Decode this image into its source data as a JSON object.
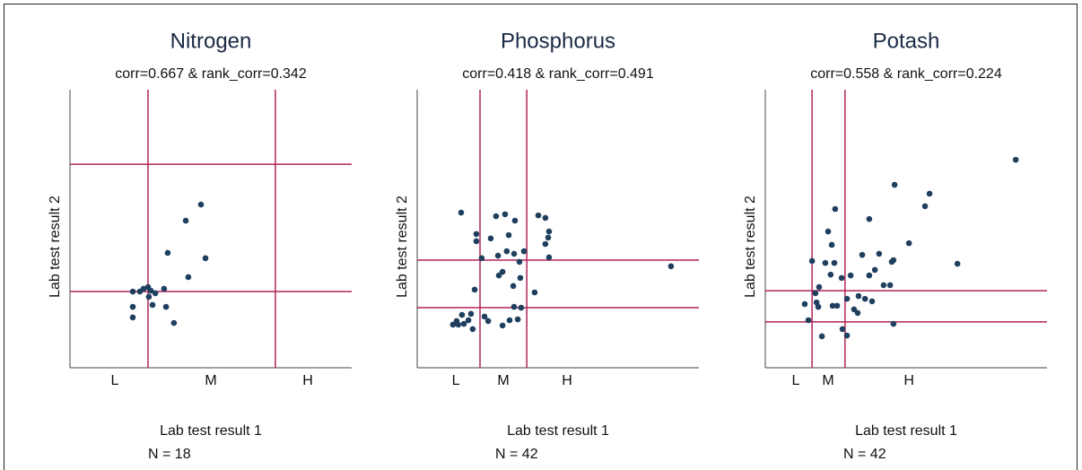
{
  "chart_data": [
    {
      "type": "scatter",
      "title": "Nitrogen",
      "subtitle": "corr=0.667 & rank_corr=0.342",
      "x_label": "Lab test result 1",
      "y_label": "Lab test result 2",
      "note": "N = 18",
      "xlim": [
        0,
        100
      ],
      "ylim": [
        0,
        100
      ],
      "xticks": [
        {
          "value": 15.9,
          "label": "L"
        },
        {
          "value": 50,
          "label": "M"
        },
        {
          "value": 84.4,
          "label": "H"
        }
      ],
      "vlines": [
        27.7,
        72.9
      ],
      "hlines": [
        73.2,
        27.4
      ],
      "color": "#1f3f5f",
      "line_color": "#b0245a",
      "x": [
        46.5,
        41.1,
        34.7,
        48.1,
        42.0,
        22.3,
        24.8,
        27.7,
        30.3,
        33.4,
        28.0,
        22.3,
        29.3,
        34.1,
        22.3,
        36.9,
        26.1,
        28.7
      ],
      "y": [
        58.7,
        52.9,
        41.3,
        39.4,
        32.6,
        27.4,
        27.4,
        29.0,
        26.8,
        28.4,
        25.5,
        21.9,
        22.6,
        21.9,
        18.1,
        16.1,
        28.4,
        27.7
      ]
    },
    {
      "type": "scatter",
      "title": "Phosphorus",
      "subtitle": "corr=0.418 & rank_corr=0.491",
      "x_label": "Lab test result 1",
      "y_label": "Lab test result 2",
      "note": "N = 42",
      "xlim": [
        0,
        100
      ],
      "ylim": [
        0,
        100
      ],
      "xticks": [
        {
          "value": 13.7,
          "label": "L"
        },
        {
          "value": 30.6,
          "label": "M"
        },
        {
          "value": 53.2,
          "label": "H"
        }
      ],
      "vlines": [
        22.3,
        38.9
      ],
      "hlines": [
        38.7,
        21.6
      ],
      "color": "#1f3f5f",
      "line_color": "#b0245a",
      "x": [
        15.6,
        28.0,
        31.2,
        34.7,
        43.0,
        45.5,
        21.0,
        26.1,
        32.5,
        46.8,
        45.5,
        46.5,
        21.0,
        31.8,
        34.4,
        37.9,
        36.3,
        28.7,
        22.9,
        46.8,
        90.1,
        30.3,
        36.6,
        20.4,
        41.7,
        34.4,
        36.9,
        19.1,
        23.9,
        15.9,
        14.0,
        12.7,
        14.6,
        16.6,
        18.2,
        19.7,
        25.2,
        30.3,
        32.8,
        35.7,
        34.1,
        29.0
      ],
      "y": [
        55.8,
        54.5,
        55.2,
        52.9,
        54.8,
        53.9,
        48.1,
        46.5,
        47.7,
        49.0,
        44.5,
        46.8,
        45.5,
        41.9,
        41.0,
        41.9,
        38.1,
        40.3,
        39.4,
        39.7,
        36.5,
        34.5,
        32.3,
        28.1,
        27.1,
        21.9,
        21.6,
        19.4,
        18.4,
        19.0,
        16.8,
        15.5,
        15.5,
        15.8,
        17.1,
        13.9,
        16.8,
        15.2,
        17.1,
        17.4,
        29.4,
        33.2
      ]
    },
    {
      "type": "scatter",
      "title": "Potash",
      "subtitle": "corr=0.558 & rank_corr=0.224",
      "x_label": "Lab test result 1",
      "y_label": "Lab test result 2",
      "note": "N = 42",
      "xlim": [
        0,
        100
      ],
      "ylim": [
        0,
        100
      ],
      "xticks": [
        {
          "value": 10.8,
          "label": "L"
        },
        {
          "value": 22.3,
          "label": "M"
        },
        {
          "value": 51.0,
          "label": "H"
        }
      ],
      "vlines": [
        16.6,
        28.3
      ],
      "hlines": [
        27.7,
        16.5
      ],
      "color": "#1f3f5f",
      "line_color": "#b0245a",
      "x": [
        88.9,
        45.9,
        58.3,
        56.7,
        24.8,
        36.9,
        22.3,
        51.0,
        23.6,
        34.4,
        40.4,
        45.5,
        44.9,
        16.6,
        21.3,
        24.5,
        68.2,
        38.9,
        30.3,
        27.1,
        36.9,
        42.0,
        44.3,
        19.1,
        17.8,
        33.1,
        29.0,
        35.4,
        18.2,
        23.9,
        14.0,
        18.8,
        31.5,
        32.8,
        37.9,
        25.5,
        15.3,
        27.4,
        45.5,
        20.1,
        29.0,
        23.2
      ],
      "y": [
        74.8,
        65.8,
        62.6,
        58.1,
        57.1,
        53.5,
        49.0,
        44.8,
        44.2,
        40.6,
        41.0,
        38.7,
        38.1,
        38.4,
        37.7,
        37.7,
        37.4,
        35.2,
        33.2,
        32.3,
        33.2,
        29.7,
        29.7,
        29.0,
        26.8,
        25.8,
        24.8,
        24.8,
        23.5,
        22.3,
        22.9,
        21.9,
        21.0,
        19.7,
        23.9,
        22.3,
        17.1,
        13.9,
        15.8,
        11.3,
        11.6,
        33.5
      ]
    }
  ]
}
